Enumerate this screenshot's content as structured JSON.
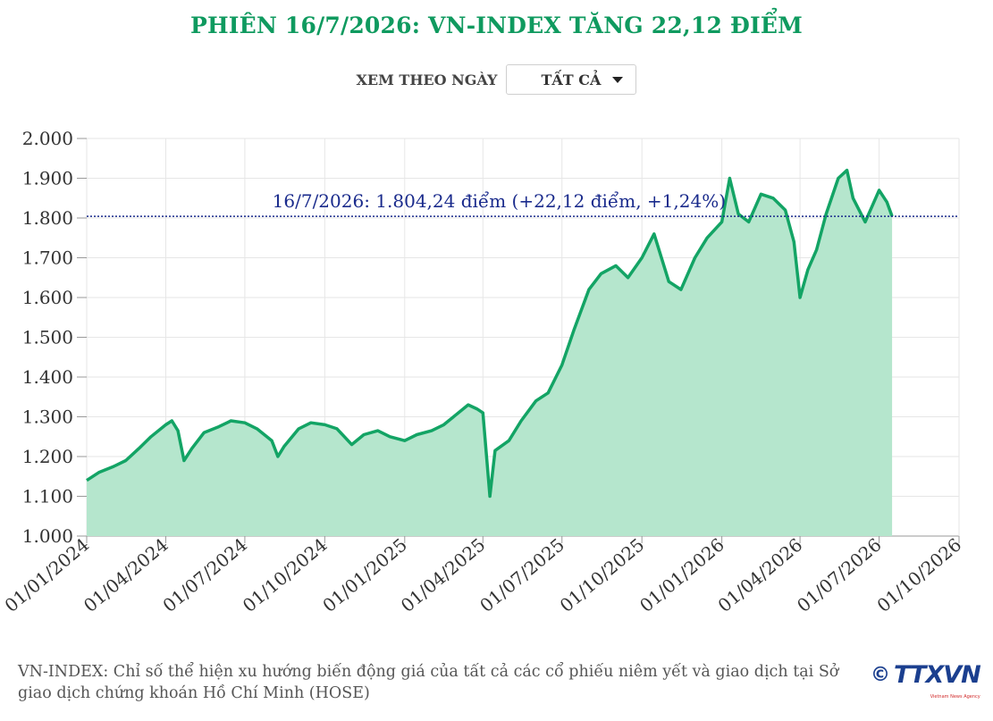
{
  "header": {
    "title": "PHIÊN 16/7/2026: VN-INDEX TĂNG 22,12 ĐIỂM"
  },
  "filter": {
    "label": "XEM THEO NGÀY",
    "selected": "TẤT CẢ"
  },
  "colors": {
    "line": "#13a465",
    "area": "#b5e6cd",
    "reference": "#1a2b8c",
    "title": "#0f9a5f"
  },
  "chart_data": {
    "type": "area",
    "y_ticks": [
      "1.000",
      "1.100",
      "1.200",
      "1.300",
      "1.400",
      "1.500",
      "1.600",
      "1.700",
      "1.800",
      "1.900",
      "2.000"
    ],
    "ylim": [
      1000,
      2000
    ],
    "x_ticks": [
      "01/01/2024",
      "01/04/2024",
      "01/07/2024",
      "01/10/2024",
      "01/01/2025",
      "01/04/2025",
      "01/07/2025",
      "01/10/2025",
      "01/01/2026",
      "01/04/2026",
      "01/07/2026",
      "01/10/2026"
    ],
    "reference": {
      "value": 1804.24,
      "label": "16/7/2026: 1.804,24 điểm (+22,12 điểm, +1,24%)"
    },
    "series": [
      {
        "x": [
          "01/01/2024",
          "15/01/2024",
          "01/02/2024",
          "15/02/2024",
          "01/03/2024",
          "15/03/2024",
          "01/04/2024",
          "08/04/2024",
          "15/04/2024",
          "22/04/2024",
          "01/05/2024",
          "15/05/2024",
          "01/06/2024",
          "15/06/2024",
          "01/07/2024",
          "15/07/2024",
          "01/08/2024",
          "08/08/2024",
          "15/08/2024",
          "01/09/2024",
          "15/09/2024",
          "01/10/2024",
          "15/10/2024",
          "01/11/2024",
          "15/11/2024",
          "01/12/2024",
          "15/12/2024",
          "01/01/2025",
          "15/01/2025",
          "01/02/2025",
          "15/02/2025",
          "01/03/2025",
          "15/03/2025",
          "25/03/2025",
          "01/04/2025",
          "09/04/2025",
          "15/04/2025",
          "01/05/2025",
          "15/05/2025",
          "01/06/2025",
          "15/06/2025",
          "01/07/2025",
          "15/07/2025",
          "01/08/2025",
          "15/08/2025",
          "01/09/2025",
          "15/09/2025",
          "01/10/2025",
          "15/10/2025",
          "01/11/2025",
          "15/11/2025",
          "01/12/2025",
          "15/12/2025",
          "01/01/2026",
          "10/01/2026",
          "20/01/2026",
          "01/02/2026",
          "15/02/2026",
          "01/03/2026",
          "15/03/2026",
          "25/03/2026",
          "01/04/2026",
          "10/04/2026",
          "20/04/2026",
          "01/05/2026",
          "15/05/2026",
          "25/05/2026",
          "01/06/2026",
          "15/06/2026",
          "01/07/2026",
          "10/07/2026",
          "16/07/2026"
        ],
        "y": [
          1140,
          1160,
          1175,
          1190,
          1220,
          1250,
          1280,
          1290,
          1265,
          1190,
          1220,
          1260,
          1275,
          1290,
          1285,
          1270,
          1240,
          1200,
          1225,
          1270,
          1285,
          1280,
          1270,
          1230,
          1255,
          1265,
          1250,
          1240,
          1255,
          1265,
          1280,
          1305,
          1330,
          1320,
          1310,
          1100,
          1215,
          1240,
          1290,
          1340,
          1360,
          1430,
          1520,
          1620,
          1660,
          1680,
          1650,
          1700,
          1760,
          1640,
          1620,
          1700,
          1750,
          1790,
          1900,
          1810,
          1790,
          1860,
          1850,
          1820,
          1740,
          1600,
          1670,
          1720,
          1810,
          1900,
          1920,
          1850,
          1790,
          1870,
          1840,
          1804.24
        ]
      }
    ]
  },
  "footer": {
    "note": "VN-INDEX: Chỉ số thể hiện xu hướng biến động giá của tất cả các cổ phiếu niêm yết và giao dịch tại Sở giao dịch chứng khoán Hồ Chí Minh (HOSE)",
    "copyright": "©",
    "logo": "TTXVN",
    "logo_sub": "Vietnam News Agency"
  }
}
